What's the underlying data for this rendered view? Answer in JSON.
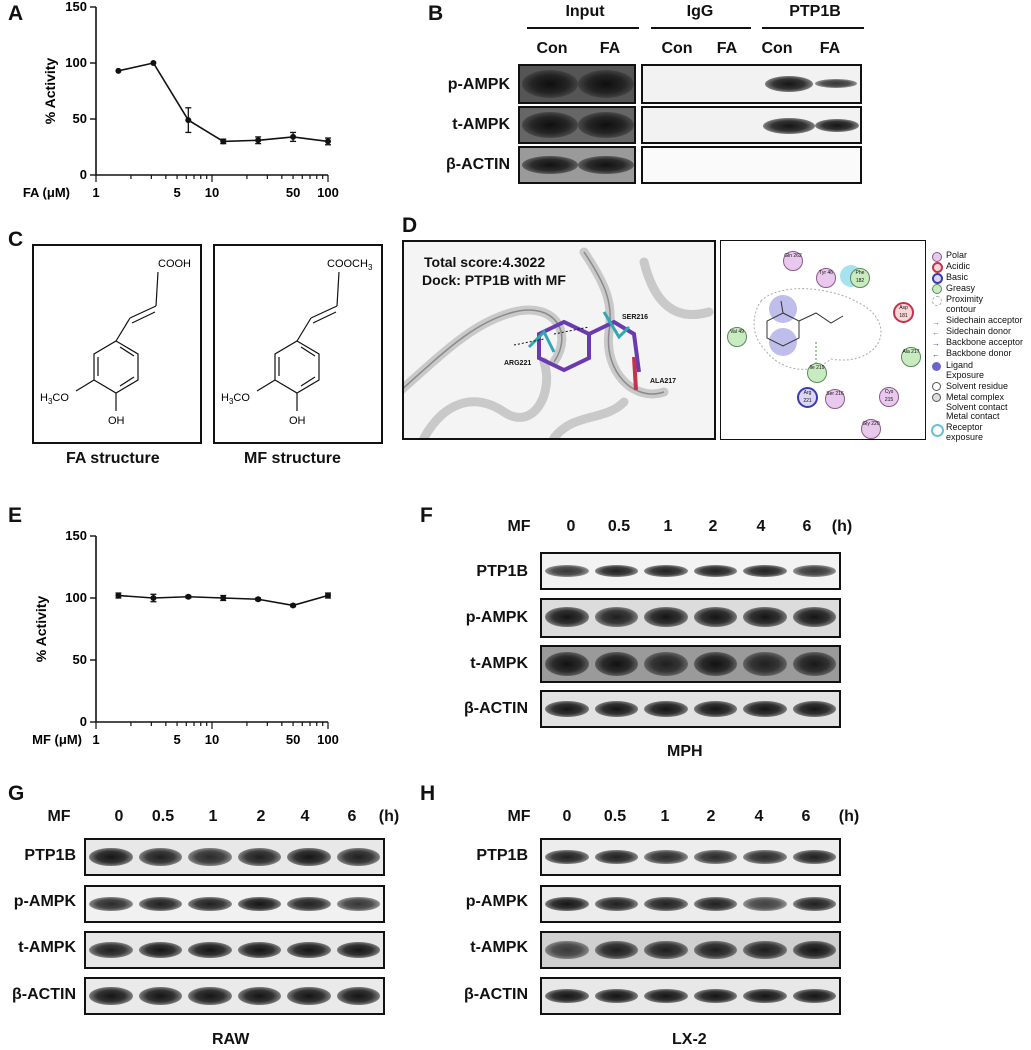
{
  "panels": {
    "a": "A",
    "b": "B",
    "c": "C",
    "d": "D",
    "e": "E",
    "f": "F",
    "g": "G",
    "h": "H"
  },
  "chart_data": [
    {
      "type": "line",
      "panel": "A",
      "ylabel": "% Activity",
      "xlabel": "FA (μM)",
      "x_scale": "log",
      "xlim": [
        1,
        100
      ],
      "ylim": [
        0,
        150
      ],
      "x_ticks": [
        "1",
        "5",
        "10",
        "50",
        "100"
      ],
      "y_ticks": [
        "0",
        "50",
        "100",
        "150"
      ],
      "x": [
        1.56,
        3.125,
        6.25,
        12.5,
        25,
        50,
        100
      ],
      "values": [
        93,
        100,
        49,
        30,
        31,
        34,
        30
      ],
      "errors": [
        0,
        0,
        11,
        2,
        3,
        4,
        3
      ]
    },
    {
      "type": "line",
      "panel": "E",
      "ylabel": "% Activity",
      "xlabel": "MF (μM)",
      "x_scale": "log",
      "xlim": [
        1,
        100
      ],
      "ylim": [
        0,
        150
      ],
      "x_ticks": [
        "1",
        "5",
        "10",
        "50",
        "100"
      ],
      "y_ticks": [
        "0",
        "50",
        "100",
        "150"
      ],
      "x": [
        1.56,
        3.125,
        6.25,
        12.5,
        25,
        50,
        100
      ],
      "values": [
        102,
        100,
        101,
        100,
        99,
        94,
        102
      ],
      "errors": [
        2,
        3,
        1,
        2,
        1,
        1,
        2
      ]
    }
  ],
  "panel_b": {
    "groups": [
      "Input",
      "IgG",
      "PTP1B"
    ],
    "lanes": [
      "Con",
      "FA",
      "Con",
      "FA",
      "Con",
      "FA"
    ],
    "rows": [
      "p-AMPK",
      "t-AMPK",
      "β-ACTIN"
    ]
  },
  "panel_c": {
    "fa_caption": "FA structure",
    "mf_caption": "MF structure",
    "fa_acid": "COOH",
    "mf_ester": "COOCH",
    "mf_ester_sub": "3",
    "methoxy_left": "H",
    "methoxy_sub": "3",
    "methoxy_right": "CO",
    "hydroxyl": "OH"
  },
  "panel_d": {
    "score": "Total score:4.3022",
    "dock": "Dock: PTP1B with MF",
    "residues": [
      "SER216",
      "ARG221",
      "ALA217"
    ],
    "map_residues": [
      "Gln 262",
      "Tyr 46",
      "Phe 182",
      "Asp 181",
      "Val 49",
      "Ala 217",
      "Ile 219",
      "Arg 221",
      "Ser 216",
      "Cys 215",
      "Gly 220"
    ],
    "legend": [
      "Polar",
      "Acidic",
      "Basic",
      "Greasy",
      "Proximity",
      "contour",
      "Sidechain acceptor",
      "Sidechain donor",
      "Backbone acceptor",
      "Backbone donor",
      "Ligand",
      "Exposure",
      "Solvent residue",
      "Metal complex",
      "Solvent contact",
      "Metal contact",
      "Receptor",
      "exposure"
    ]
  },
  "panel_f": {
    "treatment": "MF",
    "timepoints": [
      "0",
      "0.5",
      "1",
      "2",
      "4",
      "6"
    ],
    "unit": "(h)",
    "rows": [
      "PTP1B",
      "p-AMPK",
      "t-AMPK",
      "β-ACTIN"
    ],
    "cell": "MPH"
  },
  "panel_g": {
    "treatment": "MF",
    "timepoints": [
      "0",
      "0.5",
      "1",
      "2",
      "4",
      "6"
    ],
    "unit": "(h)",
    "rows": [
      "PTP1B",
      "p-AMPK",
      "t-AMPK",
      "β-ACTIN"
    ],
    "cell": "RAW"
  },
  "panel_h": {
    "treatment": "MF",
    "timepoints": [
      "0",
      "0.5",
      "1",
      "2",
      "4",
      "6"
    ],
    "unit": "(h)",
    "rows": [
      "PTP1B",
      "p-AMPK",
      "t-AMPK",
      "β-ACTIN"
    ],
    "cell": "LX-2"
  }
}
